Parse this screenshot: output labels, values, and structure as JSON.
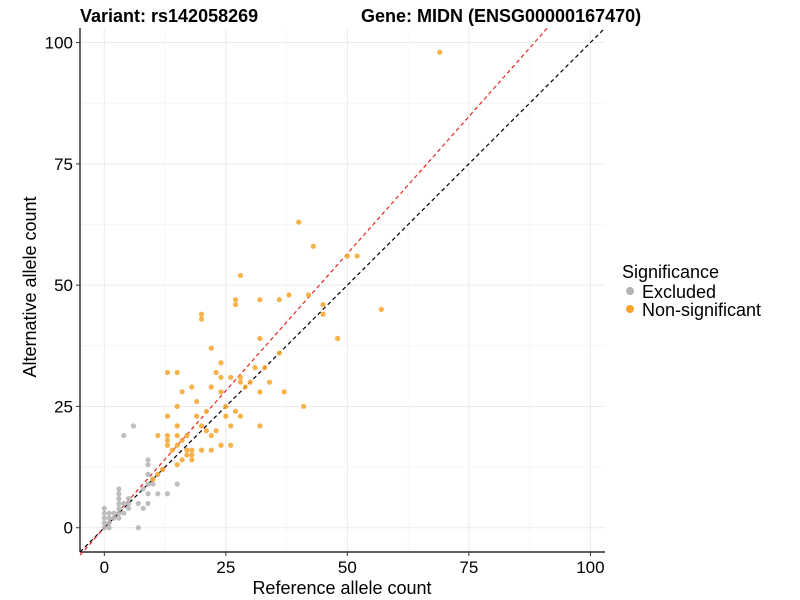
{
  "chart_data": {
    "type": "scatter",
    "title_left": "Variant: rs142058269",
    "title_right": "Gene: MIDN (ENSG00000167470)",
    "xlabel": "Reference allele count",
    "ylabel": "Alternative allele count",
    "xlim": [
      -5,
      103
    ],
    "ylim": [
      -5,
      103
    ],
    "xticks": [
      0,
      25,
      50,
      75,
      100
    ],
    "yticks": [
      0,
      25,
      50,
      75,
      100
    ],
    "grid": true,
    "legend": {
      "title": "Significance",
      "position": "right",
      "entries": [
        {
          "label": "Excluded",
          "color": "#b3b3b3"
        },
        {
          "label": "Non-significant",
          "color": "#f7a42a"
        }
      ]
    },
    "reference_lines": [
      {
        "name": "identity",
        "slope": 1,
        "intercept": 0,
        "color": "#000000",
        "dash": "dashed"
      },
      {
        "name": "fit",
        "slope": 1.13,
        "intercept": 0,
        "color": "#e8251f",
        "dash": "dashed"
      }
    ],
    "series": [
      {
        "name": "Excluded",
        "color": "#b3b3b3",
        "points": [
          [
            0,
            0
          ],
          [
            0,
            1
          ],
          [
            0,
            2
          ],
          [
            0,
            3
          ],
          [
            0,
            4
          ],
          [
            1,
            0
          ],
          [
            1,
            1
          ],
          [
            1,
            2
          ],
          [
            1,
            3
          ],
          [
            2,
            2
          ],
          [
            2,
            3
          ],
          [
            3,
            2
          ],
          [
            3,
            3
          ],
          [
            3,
            4
          ],
          [
            3,
            5
          ],
          [
            3,
            6
          ],
          [
            3,
            7
          ],
          [
            3,
            8
          ],
          [
            4,
            3
          ],
          [
            4,
            5
          ],
          [
            4,
            19
          ],
          [
            5,
            4
          ],
          [
            5,
            5
          ],
          [
            5,
            6
          ],
          [
            6,
            21
          ],
          [
            7,
            0
          ],
          [
            7,
            5
          ],
          [
            8,
            4
          ],
          [
            8,
            8
          ],
          [
            9,
            5
          ],
          [
            9,
            7
          ],
          [
            9,
            9
          ],
          [
            9,
            11
          ],
          [
            9,
            13
          ],
          [
            9,
            14
          ],
          [
            10,
            9
          ],
          [
            10,
            10
          ],
          [
            11,
            7
          ],
          [
            12,
            12
          ],
          [
            13,
            7
          ],
          [
            15,
            9
          ]
        ]
      },
      {
        "name": "Non-significant",
        "color": "#f7a42a",
        "points": [
          [
            69,
            98
          ],
          [
            40,
            63
          ],
          [
            43,
            58
          ],
          [
            50,
            56
          ],
          [
            52,
            56
          ],
          [
            57,
            45
          ],
          [
            28,
            52
          ],
          [
            27,
            47
          ],
          [
            27,
            46
          ],
          [
            32,
            47
          ],
          [
            36,
            47
          ],
          [
            38,
            48
          ],
          [
            42,
            48
          ],
          [
            20,
            44
          ],
          [
            20,
            43
          ],
          [
            45,
            46
          ],
          [
            45,
            44
          ],
          [
            48,
            39
          ],
          [
            32,
            39
          ],
          [
            22,
            37
          ],
          [
            24,
            34
          ],
          [
            23,
            32
          ],
          [
            13,
            32
          ],
          [
            15,
            32
          ],
          [
            24,
            31
          ],
          [
            26,
            31
          ],
          [
            28,
            31
          ],
          [
            31,
            33
          ],
          [
            33,
            33
          ],
          [
            34,
            30
          ],
          [
            28,
            30
          ],
          [
            22,
            29
          ],
          [
            18,
            29
          ],
          [
            16,
            28
          ],
          [
            24,
            28
          ],
          [
            32,
            28
          ],
          [
            37,
            28
          ],
          [
            19,
            26
          ],
          [
            25,
            25
          ],
          [
            15,
            25
          ],
          [
            21,
            24
          ],
          [
            27,
            24
          ],
          [
            41,
            25
          ],
          [
            13,
            23
          ],
          [
            19,
            23
          ],
          [
            25,
            23
          ],
          [
            28,
            23
          ],
          [
            11,
            19
          ],
          [
            13,
            19
          ],
          [
            15,
            19
          ],
          [
            17,
            19
          ],
          [
            22,
            19
          ],
          [
            20,
            21
          ],
          [
            26,
            21
          ],
          [
            32,
            21
          ],
          [
            13,
            18
          ],
          [
            16,
            18
          ],
          [
            13,
            17
          ],
          [
            15,
            17
          ],
          [
            24,
            17
          ],
          [
            26,
            17
          ],
          [
            14,
            16
          ],
          [
            17,
            16
          ],
          [
            18,
            16
          ],
          [
            20,
            16
          ],
          [
            22,
            16
          ],
          [
            18,
            15
          ],
          [
            16,
            14
          ],
          [
            18,
            14
          ],
          [
            15,
            13
          ],
          [
            11,
            11
          ],
          [
            10,
            10
          ],
          [
            12,
            12
          ],
          [
            15,
            21
          ],
          [
            21,
            20
          ],
          [
            17,
            15
          ],
          [
            23,
            20
          ],
          [
            36,
            36
          ],
          [
            30,
            30
          ],
          [
            29,
            29
          ]
        ]
      }
    ]
  }
}
